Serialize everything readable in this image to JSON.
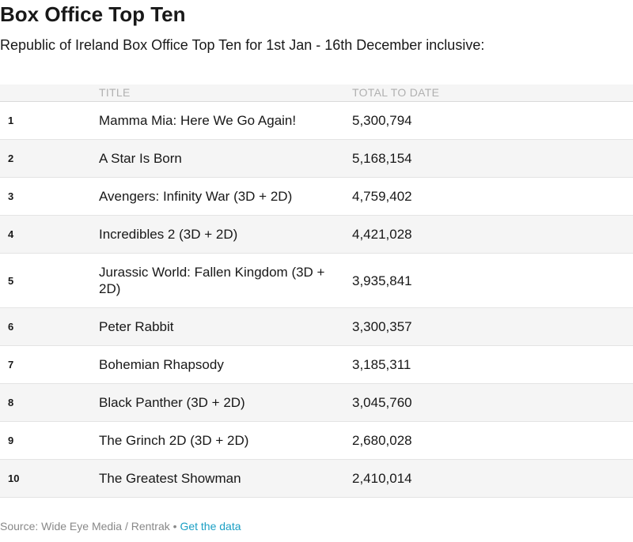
{
  "header": {
    "title": "Box Office Top Ten",
    "subtitle": "Republic of Ireland Box Office Top Ten for 1st Jan - 16th December inclusive:"
  },
  "chart_data": {
    "type": "table",
    "columns": [
      "",
      "TITLE",
      "TOTAL TO DATE"
    ],
    "rows": [
      {
        "rank": "1",
        "title": "Mamma Mia: Here We Go Again!",
        "total": "5,300,794"
      },
      {
        "rank": "2",
        "title": "A Star Is Born",
        "total": "5,168,154"
      },
      {
        "rank": "3",
        "title": "Avengers: Infinity War (3D + 2D)",
        "total": "4,759,402"
      },
      {
        "rank": "4",
        "title": "Incredibles 2 (3D + 2D)",
        "total": "4,421,028"
      },
      {
        "rank": "5",
        "title": "Jurassic World: Fallen Kingdom (3D + 2D)",
        "total": "3,935,841"
      },
      {
        "rank": "6",
        "title": "Peter Rabbit",
        "total": "3,300,357"
      },
      {
        "rank": "7",
        "title": "Bohemian Rhapsody",
        "total": "3,185,311"
      },
      {
        "rank": "8",
        "title": "Black Panther (3D + 2D)",
        "total": "3,045,760"
      },
      {
        "rank": "9",
        "title": "The Grinch 2D (3D + 2D)",
        "total": "2,680,028"
      },
      {
        "rank": "10",
        "title": "The Greatest Showman",
        "total": "2,410,014"
      }
    ]
  },
  "footer": {
    "source": "Source: Wide Eye Media / Rentrak",
    "separator": " • ",
    "link_label": "Get the data"
  }
}
